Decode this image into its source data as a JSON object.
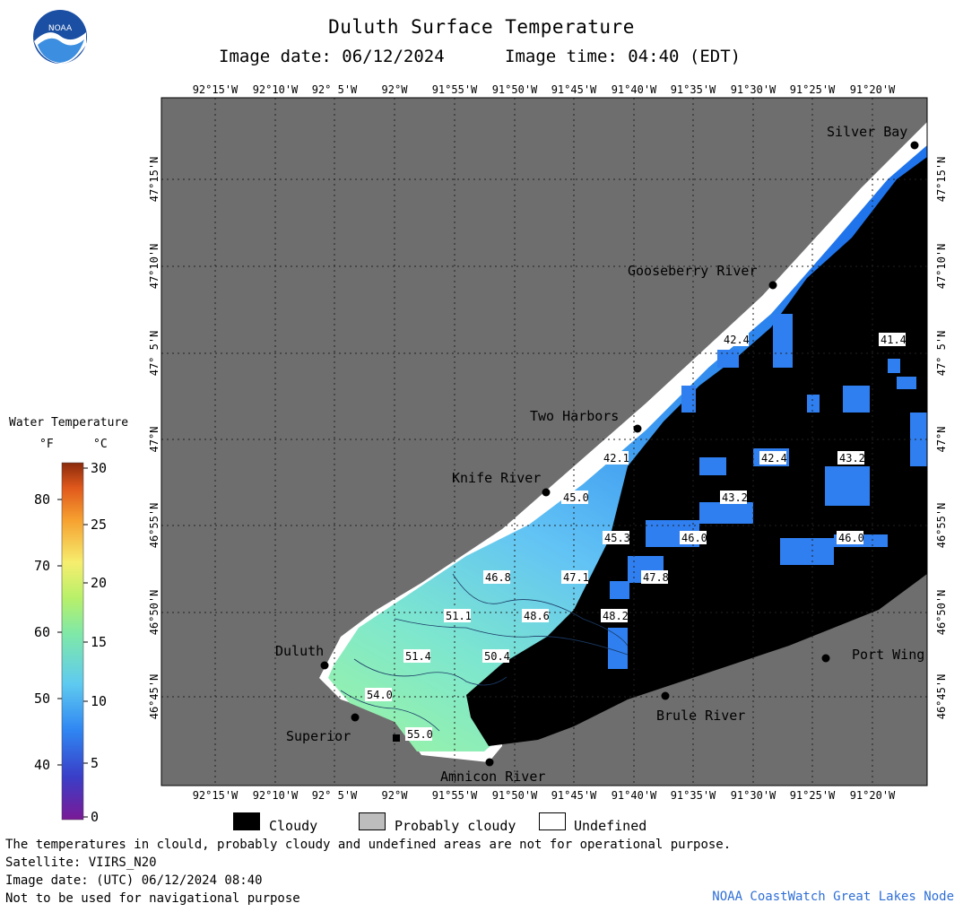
{
  "header": {
    "title": "Duluth Surface Temperature",
    "image_date_label": "Image date: 06/12/2024",
    "image_time_label": "Image time: 04:40 (EDT)",
    "logo_text": "NOAA"
  },
  "legend": {
    "title": "Water Temperature",
    "unit_f": "°F",
    "unit_c": "°C",
    "f_ticks": [
      "80",
      "70",
      "60",
      "50",
      "40"
    ],
    "c_ticks": [
      "30",
      "25",
      "20",
      "15",
      "10",
      "5",
      "0"
    ]
  },
  "map": {
    "lon_labels": [
      "92°15'W",
      "92°10'W",
      "92° 5'W",
      "92°W",
      "91°55'W",
      "91°50'W",
      "91°45'W",
      "91°40'W",
      "91°35'W",
      "91°30'W",
      "91°25'W",
      "91°20'W"
    ],
    "lat_labels": [
      "47°15'N",
      "47°10'N",
      "47° 5'N",
      "47°N",
      "46°55'N",
      "46°50'N",
      "46°45'N"
    ],
    "places": [
      "Silver Bay",
      "Gooseberry River",
      "Two Harbors",
      "Knife River",
      "Duluth",
      "Superior",
      "Amnicon River",
      "Brule River",
      "Port Wing"
    ],
    "temperature_labels": [
      "42.4",
      "41.4",
      "42.1",
      "42.4",
      "43.2",
      "45.0",
      "43.2",
      "45.3",
      "46.0",
      "46.0",
      "46.8",
      "47.1",
      "47.8",
      "51.1",
      "48.6",
      "48.2",
      "51.4",
      "50.4",
      "54.0",
      "55.0"
    ]
  },
  "key": {
    "cloudy": "Cloudy",
    "probably_cloudy": "Probably cloudy",
    "undefined": "Undefined"
  },
  "footer": {
    "line1": "The temperatures in clould, probably cloudy and undefined areas are not for operational purpose.",
    "line2": "Satellite: VIIRS_N20",
    "line3": "Image date: (UTC) 06/12/2024  08:40",
    "line4": "Not to be used for navigational purpose",
    "credit": "NOAA CoastWatch Great Lakes Node"
  },
  "colors": {
    "land": "#6e6e6e",
    "cloudy": "#000000",
    "probably_cloudy": "#bdbdbd",
    "undefined": "#ffffff",
    "water_cold": "#2f86f2",
    "water_mid": "#6cc6f6",
    "water_warm": "#8ef0b0",
    "credit": "#2f6fd6"
  }
}
